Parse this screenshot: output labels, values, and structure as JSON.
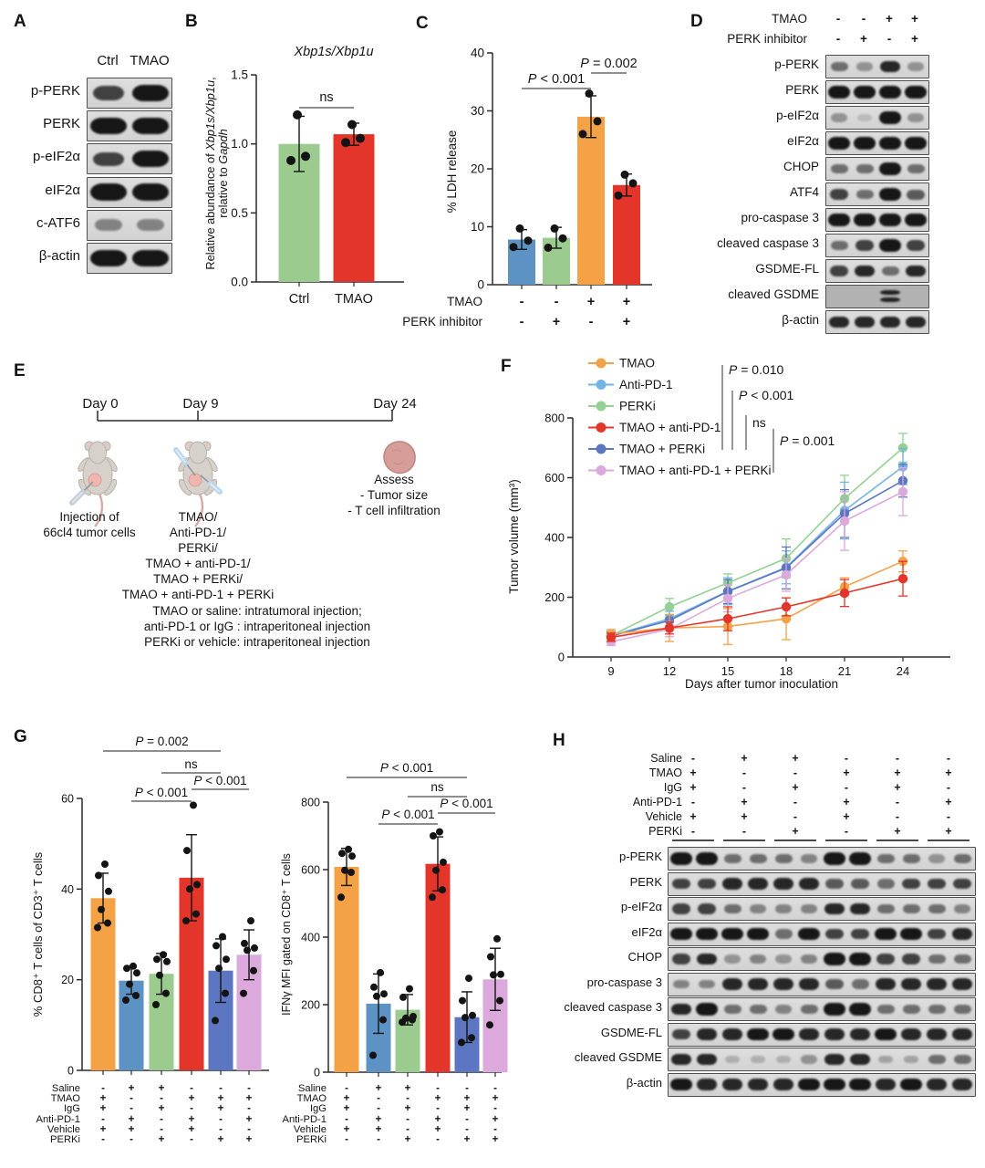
{
  "colors": {
    "orange": "#F5A146",
    "lightblue": "#72B4E6",
    "green": "#9CCB8F",
    "legend_green": "#93D193",
    "red": "#E4352B",
    "darkblue": "#5C76C1",
    "pink": "#DBA9DC",
    "barblue": "#5C93C4",
    "dot": "#141414"
  },
  "panelA": {
    "label": "A",
    "lanes": [
      "Ctrl",
      "TMAO"
    ],
    "rows": [
      {
        "name": "p-PERK",
        "bands": [
          2,
          3
        ]
      },
      {
        "name": "PERK",
        "bands": [
          3,
          3
        ]
      },
      {
        "name": "p-eIF2α",
        "bands": [
          2,
          3
        ]
      },
      {
        "name": "eIF2α",
        "bands": [
          3,
          3
        ]
      },
      {
        "name": "c-ATF6",
        "bands": [
          1.2,
          1.2
        ]
      },
      {
        "name": "β-actin",
        "bands": [
          3,
          3
        ]
      }
    ]
  },
  "panelB": {
    "label": "B",
    "chart_data": {
      "type": "bar",
      "title": [
        {
          "t": "Xbp1s/Xbp1u",
          "i": true
        }
      ],
      "ylabel_lines": [
        [
          {
            "t": "Relative abundance of "
          },
          {
            "t": "Xbp1s/Xbp1u",
            "i": true
          },
          {
            "t": ","
          }
        ],
        [
          {
            "t": "relative to "
          },
          {
            "t": "Gapdh",
            "i": true
          }
        ]
      ],
      "categories": [
        "Ctrl",
        "TMAO"
      ],
      "values": [
        1.0,
        1.07
      ],
      "errors": [
        0.2,
        0.08
      ],
      "colors": [
        "#9CCB8F",
        "#E4352B"
      ],
      "points": [
        [
          0.88,
          0.91,
          1.21
        ],
        [
          1.01,
          1.04,
          1.14
        ]
      ],
      "ylim": [
        0,
        1.5
      ],
      "yticks": [
        0,
        0.5,
        1,
        1.5
      ],
      "ytick_labels": [
        "0.0",
        "0.5",
        "1.0",
        "1.5"
      ],
      "sig": [
        {
          "label": "ns",
          "from": 0,
          "to": 1
        }
      ]
    }
  },
  "panelC": {
    "label": "C",
    "chart_data": {
      "type": "bar",
      "ylabel": "% LDH release",
      "values": [
        7.8,
        8.1,
        29,
        17.2
      ],
      "errors": [
        1.7,
        1.8,
        3.6,
        1.9
      ],
      "colors": [
        "#5C93C4",
        "#9CCB8F",
        "#F5A146",
        "#E4352B"
      ],
      "points": [
        [
          6.5,
          7.6,
          9.7
        ],
        [
          6.4,
          8.0,
          9.7
        ],
        [
          26,
          28.2,
          33
        ],
        [
          15.4,
          17.5,
          19
        ]
      ],
      "ylim": [
        0,
        40
      ],
      "yticks": [
        0,
        10,
        20,
        30,
        40
      ],
      "ytick_labels": [
        "0",
        "10",
        "20",
        "30",
        "40"
      ],
      "sig": [
        {
          "label": "P < 0.001",
          "from": 0,
          "to": 2
        },
        {
          "label": "P = 0.002",
          "from": 2,
          "to": 3
        }
      ],
      "matrix": [
        {
          "name": "TMAO",
          "vals": [
            "-",
            "-",
            "+",
            "+"
          ]
        },
        {
          "name": "PERK inhibitor",
          "vals": [
            "-",
            "+",
            "-",
            "+"
          ]
        }
      ]
    }
  },
  "panelD": {
    "label": "D",
    "matrix": [
      {
        "name": "TMAO",
        "vals": [
          "-",
          "-",
          "+",
          "+"
        ]
      },
      {
        "name": "PERK inhibitor",
        "vals": [
          "-",
          "+",
          "-",
          "+"
        ]
      }
    ],
    "rows": [
      {
        "name": "p-PERK",
        "bands": [
          1.5,
          1,
          2.5,
          1
        ]
      },
      {
        "name": "PERK",
        "bands": [
          3,
          3,
          3,
          3
        ]
      },
      {
        "name": "p-eIF2α",
        "bands": [
          1,
          0.4,
          3,
          1
        ]
      },
      {
        "name": "eIF2α",
        "bands": [
          3,
          3,
          3,
          3
        ]
      },
      {
        "name": "CHOP",
        "bands": [
          1.5,
          1.5,
          3,
          1.5
        ]
      },
      {
        "name": "ATF4",
        "bands": [
          2,
          1.5,
          3,
          1.8
        ]
      },
      {
        "name": "pro-caspase 3",
        "bands": [
          3,
          3,
          3,
          3
        ]
      },
      {
        "name": "cleaved caspase 3",
        "bands": [
          1.5,
          2,
          3,
          2
        ]
      },
      {
        "name": "GSDME-FL",
        "bands": [
          2,
          2.5,
          1.5,
          2.5
        ]
      },
      {
        "name": "cleaved GSDME",
        "bands": [
          0,
          0,
          2.5,
          0
        ],
        "bg": "#b2b2b2",
        "double": true
      },
      {
        "name": "β-actin",
        "bands": [
          2.5,
          2.5,
          2.5,
          2.5
        ]
      }
    ]
  },
  "panelE": {
    "label": "E",
    "days": [
      "Day 0",
      "Day 9",
      "Day 24"
    ],
    "caption_injection": [
      "Injection of",
      "66cl4 tumor cells"
    ],
    "caption_treatments": [
      "TMAO/",
      "Anti-PD-1/",
      "PERKi/",
      "TMAO + anti-PD-1/",
      "TMAO + PERKi/",
      "TMAO + anti-PD-1 + PERKi"
    ],
    "caption_assess": [
      "Assess",
      "- Tumor size",
      "- T cell infiltration"
    ],
    "footnote": [
      "TMAO or saline: intratumoral injection;",
      "anti-PD-1 or IgG : intraperitoneal injection",
      "PERKi or vehicle: intraperitoneal injection"
    ]
  },
  "panelF": {
    "label": "F",
    "chart_data": {
      "type": "line",
      "x": [
        9,
        12,
        15,
        18,
        21,
        24
      ],
      "xlabel": "Days after tumor inoculation",
      "ylabel": "Tumor volume (mm³)",
      "ylim": [
        0,
        800
      ],
      "yticks": [
        0,
        200,
        400,
        600,
        800
      ],
      "series": [
        {
          "name": "TMAO",
          "color": "#F5A146",
          "values": [
            77,
            97,
            102,
            128,
            235,
            320
          ],
          "errors": [
            15,
            45,
            60,
            70,
            30,
            35
          ]
        },
        {
          "name": "Anti-PD-1",
          "color": "#72B4E6",
          "values": [
            71,
            128,
            220,
            300,
            490,
            637
          ],
          "errors": [
            15,
            25,
            45,
            55,
            95,
            60
          ]
        },
        {
          "name": "PERKi",
          "color": "#93D193",
          "values": [
            71,
            168,
            248,
            330,
            530,
            700
          ],
          "errors": [
            15,
            28,
            30,
            65,
            78,
            48
          ]
        },
        {
          "name": "TMAO + anti-PD-1",
          "color": "#E4352B",
          "values": [
            66,
            97,
            128,
            168,
            214,
            262
          ],
          "errors": [
            14,
            20,
            40,
            30,
            45,
            58
          ]
        },
        {
          "name": "TMAO + PERKi",
          "color": "#5C76C1",
          "values": [
            70,
            122,
            219,
            298,
            480,
            590
          ],
          "errors": [
            15,
            20,
            40,
            70,
            80,
            55
          ]
        },
        {
          "name": "TMAO + anti-PD-1 + PERKi",
          "color": "#DBA9DC",
          "values": [
            51,
            93,
            196,
            275,
            455,
            553
          ],
          "errors": [
            12,
            25,
            45,
            55,
            98,
            80
          ]
        }
      ],
      "sig": [
        {
          "label": "P = 0.010"
        },
        {
          "label": "P < 0.001"
        },
        {
          "label": "ns"
        },
        {
          "label": "P = 0.001"
        }
      ]
    }
  },
  "panelG": {
    "label": "G",
    "left": {
      "type": "bar",
      "ylabel": "% CD8⁺ T cells of CD3⁺ T cells",
      "values": [
        38,
        19.8,
        21.3,
        42.5,
        22,
        25.5
      ],
      "errors": [
        5.5,
        3,
        4.5,
        9.5,
        7,
        5.5
      ],
      "colors": [
        "#F5A146",
        "#5C93C4",
        "#9CCB8F",
        "#E4352B",
        "#5C76C1",
        "#DBA9DC"
      ],
      "points": [
        [
          31.5,
          32.5,
          35.5,
          39.5,
          43,
          45.5
        ],
        [
          15.5,
          16.5,
          19,
          21.5,
          22.5,
          23
        ],
        [
          14.5,
          17,
          21,
          24,
          24.5,
          25.5
        ],
        [
          33,
          34.5,
          40,
          41,
          48.5,
          58.5
        ],
        [
          11,
          17,
          22.5,
          24.5,
          27.5,
          29.5
        ],
        [
          17,
          22,
          26.5,
          27,
          28,
          33
        ]
      ],
      "ylim": [
        0,
        60
      ],
      "yticks": [
        0,
        20,
        40,
        60
      ],
      "ytick_labels": [
        "0",
        "20",
        "40",
        "60"
      ],
      "sig": [
        {
          "label": "P = 0.002",
          "from": 0,
          "to": 4
        },
        {
          "label": "ns",
          "from": 2,
          "to": 4
        },
        {
          "label": "P < 0.001",
          "from": 3,
          "to": 5
        },
        {
          "label": "P < 0.001",
          "from": 1,
          "to": 3
        }
      ]
    },
    "right": {
      "type": "bar",
      "ylabel": "IFNγ MFI gated on CD8⁺ T cells",
      "values": [
        608,
        203,
        185,
        617,
        163,
        275
      ],
      "errors": [
        55,
        88,
        45,
        80,
        75,
        92
      ],
      "colors": [
        "#F5A146",
        "#5C93C4",
        "#9CCB8F",
        "#E4352B",
        "#5C76C1",
        "#DBA9DC"
      ],
      "points": [
        [
          518,
          592,
          598,
          640,
          648,
          660
        ],
        [
          50,
          155,
          225,
          232,
          252,
          295
        ],
        [
          148,
          155,
          160,
          165,
          222,
          247
        ],
        [
          518,
          540,
          598,
          622,
          700,
          712
        ],
        [
          88,
          102,
          162,
          168,
          212,
          278
        ],
        [
          140,
          212,
          288,
          290,
          342,
          395
        ]
      ],
      "ylim": [
        0,
        800
      ],
      "yticks": [
        0,
        200,
        400,
        600,
        800
      ],
      "ytick_labels": [
        "0",
        "200",
        "400",
        "600",
        "800"
      ],
      "sig": [
        {
          "label": "P < 0.001",
          "from": 0,
          "to": 4
        },
        {
          "label": "ns",
          "from": 2,
          "to": 4
        },
        {
          "label": "P < 0.001",
          "from": 3,
          "to": 5
        },
        {
          "label": "P < 0.001",
          "from": 1,
          "to": 3
        }
      ]
    },
    "matrix": [
      {
        "name": "Saline",
        "vals": [
          "-",
          "+",
          "+",
          "-",
          "-",
          "-"
        ]
      },
      {
        "name": "TMAO",
        "vals": [
          "+",
          "-",
          "-",
          "+",
          "+",
          "+"
        ]
      },
      {
        "name": "IgG",
        "vals": [
          "+",
          "-",
          "+",
          "-",
          "+",
          "-"
        ]
      },
      {
        "name": "Anti-PD-1",
        "vals": [
          "-",
          "+",
          "-",
          "+",
          "-",
          "+"
        ]
      },
      {
        "name": "Vehicle",
        "vals": [
          "+",
          "+",
          "-",
          "+",
          "-",
          "-"
        ]
      },
      {
        "name": "PERKi",
        "vals": [
          "-",
          "-",
          "+",
          "-",
          "+",
          "+"
        ]
      }
    ]
  },
  "panelH": {
    "label": "H",
    "matrix": [
      {
        "name": "Saline",
        "vals": [
          "-",
          "+",
          "+",
          "-",
          "-",
          "-"
        ]
      },
      {
        "name": "TMAO",
        "vals": [
          "+",
          "-",
          "-",
          "+",
          "+",
          "+"
        ]
      },
      {
        "name": "IgG",
        "vals": [
          "+",
          "-",
          "+",
          "-",
          "+",
          "-"
        ]
      },
      {
        "name": "Anti-PD-1",
        "vals": [
          "-",
          "+",
          "-",
          "+",
          "-",
          "+"
        ]
      },
      {
        "name": "Vehicle",
        "vals": [
          "+",
          "+",
          "-",
          "+",
          "-",
          "-"
        ]
      },
      {
        "name": "PERKi",
        "vals": [
          "-",
          "-",
          "+",
          "-",
          "+",
          "+"
        ]
      }
    ],
    "rows": [
      {
        "name": "p-PERK",
        "bands": [
          3,
          3,
          1.5,
          1.5,
          1.5,
          1.2,
          3,
          3,
          1.5,
          1.5,
          1,
          1.5
        ]
      },
      {
        "name": "PERK",
        "bands": [
          2,
          2,
          2.5,
          2.5,
          2.5,
          2.5,
          1.8,
          1.8,
          1.5,
          2,
          2,
          2
        ]
      },
      {
        "name": "p-eIF2α",
        "bands": [
          2,
          2,
          1.5,
          1.2,
          1.2,
          1.2,
          2.5,
          2.5,
          1.5,
          1.5,
          1.5,
          1.2
        ]
      },
      {
        "name": "eIF2α",
        "bands": [
          3,
          3,
          3,
          3,
          1.5,
          3,
          2,
          2,
          3,
          3,
          2,
          2.5
        ]
      },
      {
        "name": "CHOP",
        "bands": [
          2,
          2.5,
          1,
          1.2,
          1,
          1.2,
          3,
          3,
          2,
          2,
          1.5,
          1.5
        ]
      },
      {
        "name": "pro-caspase 3",
        "bands": [
          1.2,
          1.2,
          2.5,
          2.5,
          2.5,
          2.5,
          1.8,
          1.5,
          2.5,
          2.5,
          2.5,
          2.5
        ]
      },
      {
        "name": "cleaved caspase 3",
        "bands": [
          2.5,
          3,
          1.5,
          1.5,
          1.2,
          1.5,
          3,
          3,
          1.5,
          1.5,
          1.5,
          1.5
        ]
      },
      {
        "name": "GSDME-FL",
        "bands": [
          2,
          2.5,
          2.5,
          3,
          3,
          2.5,
          2.5,
          2.5,
          3,
          2.5,
          2.5,
          2.5
        ]
      },
      {
        "name": "cleaved GSDME",
        "bands": [
          2.5,
          2.5,
          0.5,
          0.5,
          0.5,
          1,
          2.5,
          2.5,
          0.8,
          0.8,
          1.5,
          1.5
        ]
      },
      {
        "name": "β-actin",
        "bands": [
          3,
          2.5,
          2.5,
          2.5,
          2.5,
          3,
          3,
          3,
          2.5,
          3,
          2.5,
          2.5
        ]
      }
    ]
  }
}
